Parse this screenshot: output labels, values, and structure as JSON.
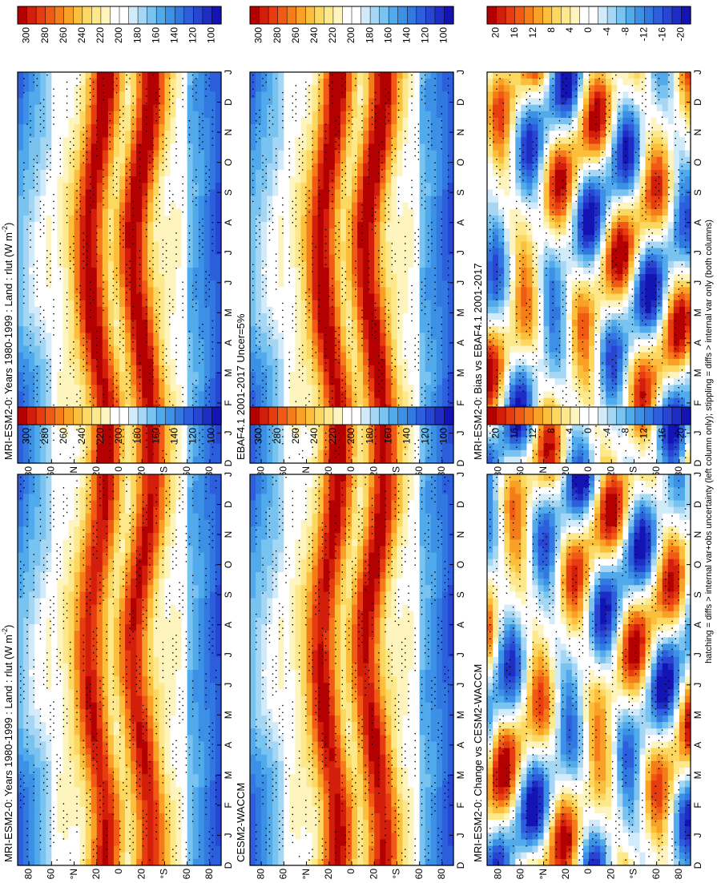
{
  "figure": {
    "footnote": "hatching = diffs > internal var+obs uncertainty (left column only); stippling = diffs > internal var only (both columns)"
  },
  "months": [
    "D",
    "J",
    "F",
    "M",
    "A",
    "M",
    "J",
    "J",
    "A",
    "S",
    "O",
    "N",
    "D",
    "J"
  ],
  "lat_ticks": [
    "80",
    "60",
    "°N",
    "20",
    "0",
    "20",
    "°S",
    "60",
    "80"
  ],
  "colorbars": {
    "absolute": {
      "labels": [
        "300",
        "280",
        "260",
        "240",
        "220",
        "200",
        "180",
        "160",
        "140",
        "120",
        "100"
      ],
      "colors": [
        "#b40000",
        "#d21e0a",
        "#e63c0f",
        "#f05a14",
        "#f57d19",
        "#f9a026",
        "#fbbf3c",
        "#fcd860",
        "#fde98c",
        "#fef4be",
        "#ffffff",
        "#ffffff",
        "#d2ebfa",
        "#a5d7f5",
        "#78c3f0",
        "#50aaeb",
        "#3c91e6",
        "#3278e1",
        "#2d5fdc",
        "#2846d2",
        "#1e2dc3",
        "#1414b4"
      ]
    },
    "difference": {
      "labels": [
        "20",
        "16",
        "12",
        "8",
        "4",
        "0",
        "-4",
        "-8",
        "-12",
        "-16",
        "-20"
      ],
      "colors": [
        "#b40000",
        "#d21e0a",
        "#e63c0f",
        "#f05a14",
        "#f57d19",
        "#f9a026",
        "#fbbf3c",
        "#fcd860",
        "#fde98c",
        "#fef4be",
        "#ffffff",
        "#ffffff",
        "#d2ebfa",
        "#a5d7f5",
        "#78c3f0",
        "#50aaeb",
        "#3c91e6",
        "#3278e1",
        "#2d5fdc",
        "#2846d2",
        "#1e2dc3",
        "#1414b4"
      ]
    }
  },
  "chart_data": [
    {
      "id": "p1",
      "type": "heatmap",
      "kind": "absolute",
      "title": "MRI-ESM2-0: Years 1980-1999 : Land : rlut (W m",
      "title_sup": "-2",
      "title_end": ")",
      "x": "month (D–J)",
      "y": "latitude (-90 to 90)",
      "units": "W m-2",
      "range": [
        100,
        300
      ],
      "peak_value": 300,
      "polar_value": 130
    },
    {
      "id": "p2",
      "type": "heatmap",
      "kind": "absolute",
      "title": "MRI-ESM2-0: Years 1980-1999 : Land : rlut (W m",
      "title_sup": "-2",
      "title_end": ")",
      "x": "month (D–J)",
      "y": "latitude (-90 to 90)",
      "units": "W m-2",
      "range": [
        100,
        300
      ],
      "peak_value": 290,
      "polar_value": 140
    },
    {
      "id": "p3",
      "type": "heatmap",
      "kind": "absolute",
      "title": "EBAF4.1 2001-2017 Uncer=5%",
      "title_sup": "",
      "title_end": "",
      "x": "month (D–J)",
      "y": "latitude (-90 to 90)",
      "units": "W m-2",
      "range": [
        100,
        300
      ],
      "peak_value": 300,
      "polar_value": 150
    },
    {
      "id": "p4",
      "type": "heatmap",
      "kind": "absolute",
      "title": "CESM2-WACCM",
      "title_sup": "",
      "title_end": "",
      "x": "month (D–J)",
      "y": "latitude (-90 to 90)",
      "units": "W m-2",
      "range": [
        100,
        300
      ],
      "peak_value": 295,
      "polar_value": 135
    },
    {
      "id": "p5",
      "type": "heatmap",
      "kind": "difference",
      "title": "MRI-ESM2-0: Bias vs EBAF4.1 2001-2017",
      "title_sup": "",
      "title_end": "",
      "x": "month (D–J)",
      "y": "latitude (-90 to 90)",
      "units": "W m-2",
      "range": [
        -20,
        20
      ]
    },
    {
      "id": "p6",
      "type": "heatmap",
      "kind": "difference",
      "title": "MRI-ESM2-0: Change vs CESM2-WACCM",
      "title_sup": "",
      "title_end": "",
      "x": "month (D–J)",
      "y": "latitude (-90 to 90)",
      "units": "W m-2",
      "range": [
        -20,
        20
      ]
    }
  ]
}
